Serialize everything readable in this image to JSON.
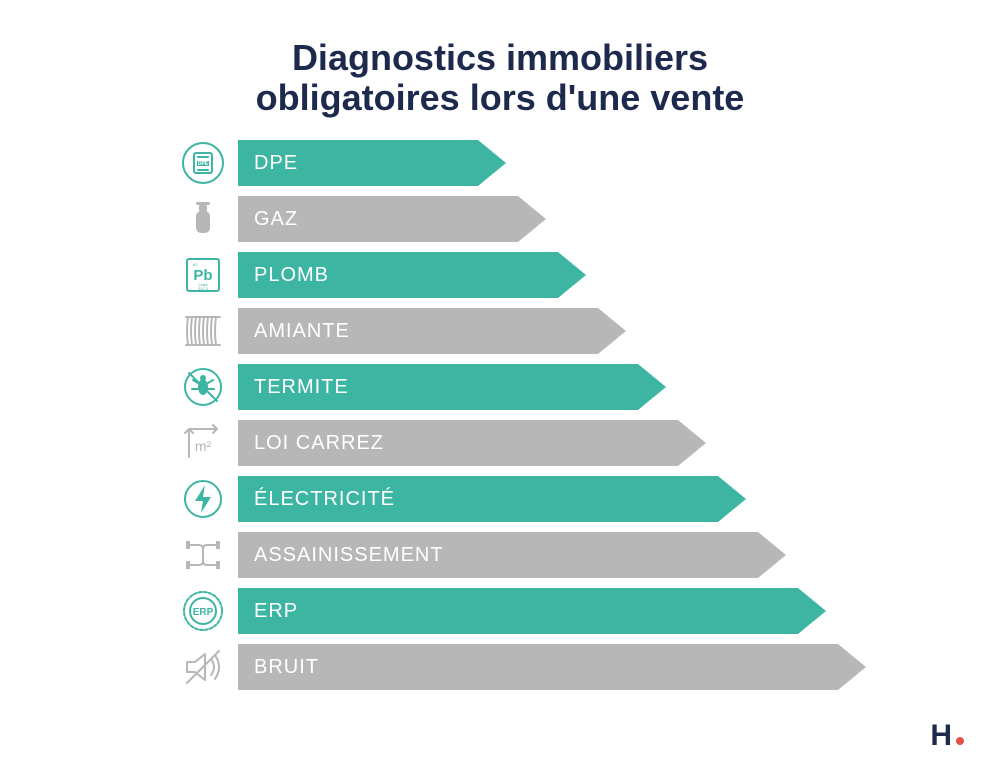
{
  "title_line1": "Diagnostics immobiliers",
  "title_line2": "obligatoires lors d'une vente",
  "title_fontsize": 36,
  "title_color": "#1d2a4d",
  "colors": {
    "teal": "#3db5a3",
    "gray": "#b7b7b7",
    "gray_icon": "#b7b7b7",
    "teal_icon": "#3db5a3",
    "text_on_bar": "#ffffff",
    "logo_navy": "#1d2a4d",
    "logo_red": "#e94f4a",
    "background": "#ffffff"
  },
  "bars": {
    "start_width": 240,
    "step_width": 40,
    "arrow_width": 28,
    "height": 46,
    "gap": 10,
    "label_fontsize": 20
  },
  "items": [
    {
      "label": "DPE",
      "icon": "dpe",
      "icon_color": "teal",
      "bar_color": "teal"
    },
    {
      "label": "GAZ",
      "icon": "gaz",
      "icon_color": "gray",
      "bar_color": "gray"
    },
    {
      "label": "PLOMB",
      "icon": "pb",
      "icon_color": "teal",
      "bar_color": "teal"
    },
    {
      "label": "AMIANTE",
      "icon": "amiante",
      "icon_color": "gray",
      "bar_color": "gray"
    },
    {
      "label": "TERMITE",
      "icon": "termite",
      "icon_color": "teal",
      "bar_color": "teal"
    },
    {
      "label": "LOI CARREZ",
      "icon": "m2",
      "icon_color": "gray",
      "bar_color": "gray"
    },
    {
      "label": "ÉLECTRICITÉ",
      "icon": "elec",
      "icon_color": "teal",
      "bar_color": "teal"
    },
    {
      "label": "ASSAINISSEMENT",
      "icon": "pipes",
      "icon_color": "gray",
      "bar_color": "gray"
    },
    {
      "label": "ERP",
      "icon": "erp",
      "icon_color": "teal",
      "bar_color": "teal"
    },
    {
      "label": "BRUIT",
      "icon": "bruit",
      "icon_color": "gray",
      "bar_color": "gray"
    }
  ],
  "logo": {
    "text": "H",
    "fontsize": 30
  }
}
